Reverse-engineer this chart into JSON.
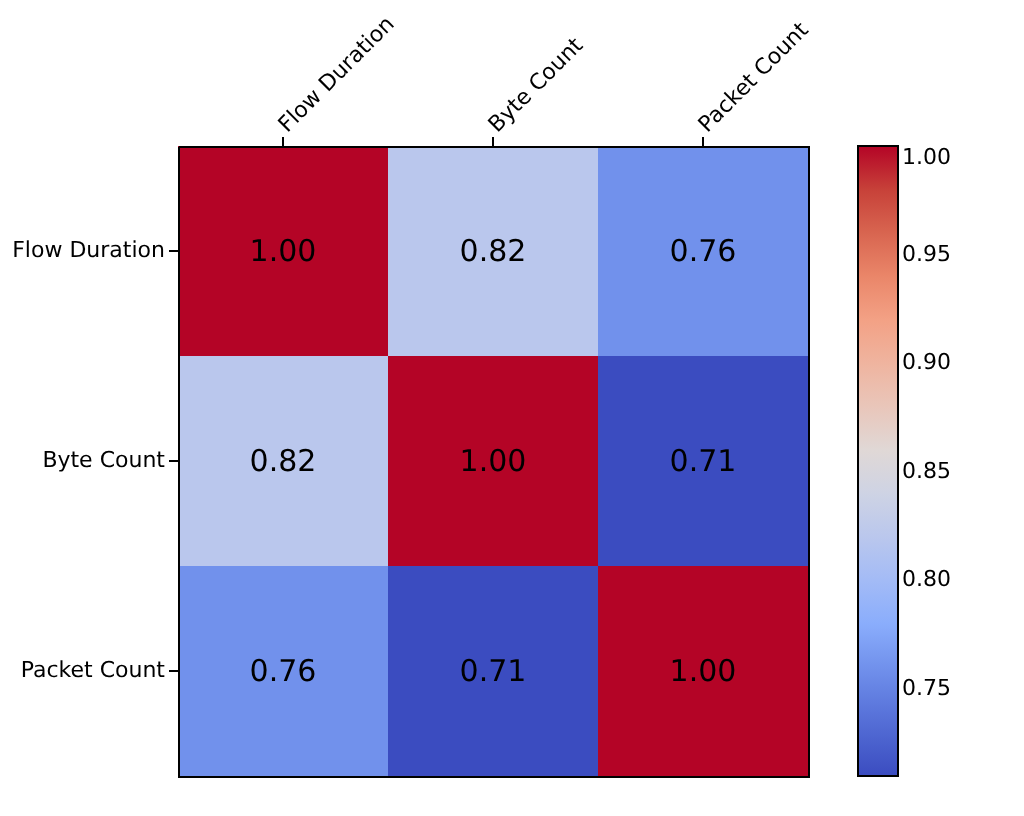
{
  "chart_data": {
    "type": "heatmap",
    "categories": [
      "Flow Duration",
      "Byte Count",
      "Packet Count"
    ],
    "y_categories": [
      "Flow Duration",
      "Byte Count",
      "Packet Count"
    ],
    "cells": [
      [
        1.0,
        0.82,
        0.76
      ],
      [
        0.82,
        1.0,
        0.71
      ],
      [
        0.76,
        0.71,
        1.0
      ]
    ],
    "cell_labels": [
      [
        "1.00",
        "0.82",
        "0.76"
      ],
      [
        "0.82",
        "1.00",
        "0.71"
      ],
      [
        "0.76",
        "0.71",
        "1.00"
      ]
    ],
    "data_labels": true,
    "clim": [
      0.71,
      1.0
    ],
    "cticks": [
      {
        "value": 0.75,
        "label": "0.75"
      },
      {
        "value": 0.8,
        "label": "0.80"
      },
      {
        "value": 0.85,
        "label": "0.85"
      },
      {
        "value": 0.9,
        "label": "0.90"
      },
      {
        "value": 0.95,
        "label": "0.95"
      },
      {
        "value": 1.0,
        "label": "1.00"
      }
    ]
  }
}
